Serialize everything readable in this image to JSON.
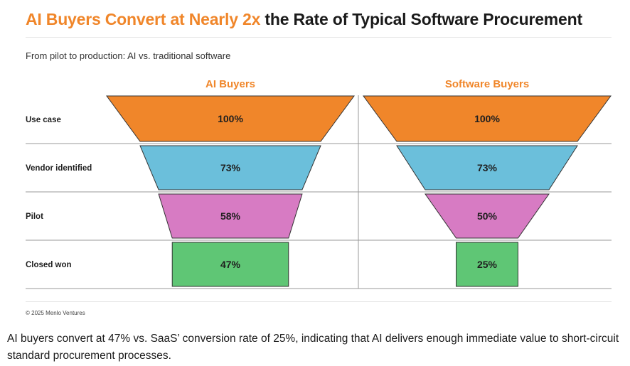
{
  "header": {
    "title_accent": "AI Buyers Convert at Nearly 2x",
    "title_rest": " the Rate of Typical Software Procurement",
    "subtitle": "From pilot to production: AI vs. traditional software"
  },
  "footer": {
    "copyright": "© 2025 Menlo Ventures",
    "caption": "AI buyers convert at 47% vs. SaaS’ conversion rate of 25%, indicating that AI delivers enough immediate value to short-circuit standard procurement processes."
  },
  "colors": {
    "accent": "#f0862a",
    "stage_colors": [
      "#f0862a",
      "#6bbfdb",
      "#d77bc3",
      "#5fc675"
    ],
    "edge": "#333333",
    "grid": "#9a9a9a"
  },
  "chart_data": {
    "type": "funnel",
    "title": "AI Buyers Convert at Nearly 2x the Rate of Typical Software Procurement",
    "subtitle": "From pilot to production: AI vs. traditional software",
    "stages": [
      "Use case",
      "Vendor identified",
      "Pilot",
      "Closed won"
    ],
    "series": [
      {
        "name": "AI Buyers",
        "values": [
          100,
          73,
          58,
          47
        ],
        "labels": [
          "100%",
          "73%",
          "58%",
          "47%"
        ]
      },
      {
        "name": "Software Buyers",
        "values": [
          100,
          73,
          50,
          25
        ],
        "labels": [
          "100%",
          "73%",
          "50%",
          "25%"
        ]
      }
    ],
    "unit": "%"
  }
}
